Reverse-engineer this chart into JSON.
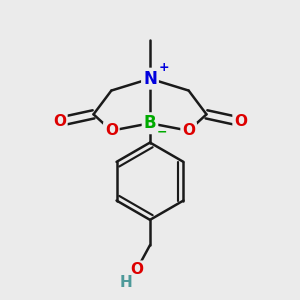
{
  "background_color": "#ebebeb",
  "bond_color": "#1a1a1a",
  "bond_width": 1.8,
  "figsize": [
    3.0,
    3.0
  ],
  "dpi": 100,
  "atoms": {
    "N": {
      "color": "#0000dd",
      "fontsize": 12
    },
    "B": {
      "color": "#00aa00",
      "fontsize": 12
    },
    "O": {
      "color": "#dd0000",
      "fontsize": 11
    },
    "OH_O": {
      "color": "#dd0000",
      "fontsize": 11
    },
    "H": {
      "color": "#4d9999",
      "fontsize": 11
    }
  }
}
